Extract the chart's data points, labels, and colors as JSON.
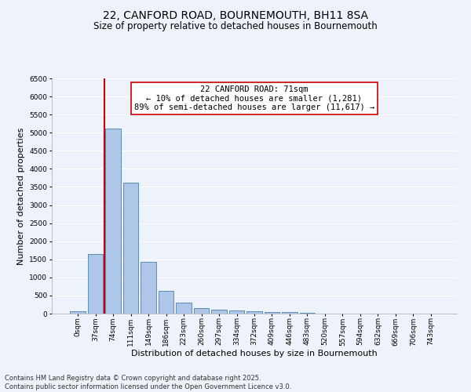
{
  "title_line1": "22, CANFORD ROAD, BOURNEMOUTH, BH11 8SA",
  "title_line2": "Size of property relative to detached houses in Bournemouth",
  "xlabel": "Distribution of detached houses by size in Bournemouth",
  "ylabel": "Number of detached properties",
  "footer_line1": "Contains HM Land Registry data © Crown copyright and database right 2025.",
  "footer_line2": "Contains public sector information licensed under the Open Government Licence v3.0.",
  "annotation_title": "22 CANFORD ROAD: 71sqm",
  "annotation_line1": "← 10% of detached houses are smaller (1,281)",
  "annotation_line2": "89% of semi-detached houses are larger (11,617) →",
  "subject_bar_index": 2,
  "bar_labels": [
    "0sqm",
    "37sqm",
    "74sqm",
    "111sqm",
    "149sqm",
    "186sqm",
    "223sqm",
    "260sqm",
    "297sqm",
    "334sqm",
    "372sqm",
    "409sqm",
    "446sqm",
    "483sqm",
    "520sqm",
    "557sqm",
    "594sqm",
    "632sqm",
    "669sqm",
    "706sqm",
    "743sqm"
  ],
  "bar_values": [
    70,
    1640,
    5120,
    3620,
    1430,
    620,
    310,
    145,
    110,
    80,
    60,
    50,
    35,
    20,
    10,
    8,
    5,
    4,
    3,
    2,
    2
  ],
  "bar_color": "#aec6e8",
  "bar_edge_color": "#5b8db8",
  "subject_line_color": "#cc0000",
  "annotation_box_edge_color": "#cc0000",
  "annotation_box_face_color": "#ffffff",
  "background_color": "#eef2fa",
  "ylim": [
    0,
    6500
  ],
  "yticks": [
    0,
    500,
    1000,
    1500,
    2000,
    2500,
    3000,
    3500,
    4000,
    4500,
    5000,
    5500,
    6000,
    6500
  ],
  "grid_color": "#ffffff",
  "title_fontsize": 10,
  "subtitle_fontsize": 8.5,
  "axis_label_fontsize": 8,
  "tick_fontsize": 6.5,
  "annotation_fontsize": 7.5,
  "footer_fontsize": 6
}
